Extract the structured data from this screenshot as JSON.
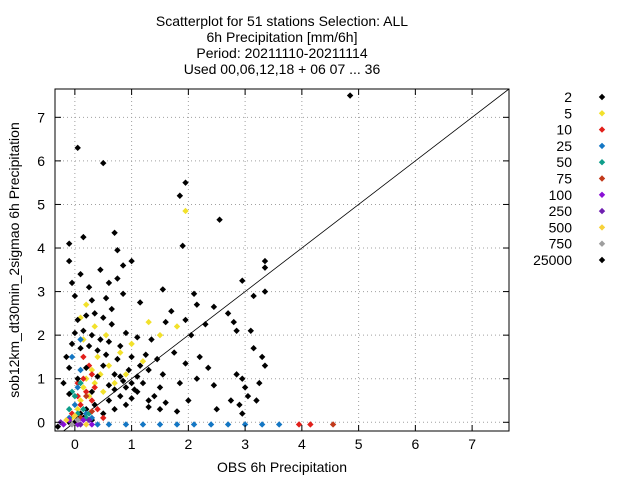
{
  "chart_data": {
    "type": "scatter",
    "title_lines": [
      "Scatterplot for   51 stations Selection: ALL",
      "6h Precipitation [mm/6h]",
      "Period: 20211110-20211114",
      "Used 00,06,12,18 + 06 07 ... 36"
    ],
    "xlabel": "OBS 6h Precipitation",
    "ylabel": "sob12km_dt30min_2sigmao 6h Precipitation",
    "xlim": [
      -0.35,
      7.65
    ],
    "ylim": [
      -0.2,
      7.65
    ],
    "xticks": [
      0,
      1,
      2,
      3,
      4,
      5,
      6,
      7
    ],
    "yticks": [
      0,
      1,
      2,
      3,
      4,
      5,
      6,
      7
    ],
    "diagonal": true,
    "legend_placement": "right",
    "series": [
      {
        "name": "2",
        "color": "#000000",
        "points": [
          [
            -0.3,
            -0.1
          ],
          [
            -0.1,
            0
          ],
          [
            0,
            0
          ],
          [
            0.05,
            0.1
          ],
          [
            0.1,
            0.2
          ],
          [
            0.15,
            0.1
          ],
          [
            0.2,
            0.3
          ],
          [
            0.3,
            0.05
          ],
          [
            0.35,
            0.4
          ],
          [
            0.5,
            0.2
          ],
          [
            0.6,
            0.5
          ],
          [
            0.7,
            0.3
          ],
          [
            0.8,
            0.6
          ],
          [
            0.9,
            0.4
          ],
          [
            1.0,
            0.9
          ],
          [
            1.1,
            0.7
          ],
          [
            1.3,
            0.5
          ],
          [
            1.5,
            0.3
          ]
        ]
      },
      {
        "name": "5",
        "color": "#f2e12b",
        "points": [
          [
            -0.05,
            0.1
          ],
          [
            0.05,
            0.3
          ],
          [
            0.1,
            0.5
          ],
          [
            0.15,
            0.8
          ],
          [
            0.2,
            1.0
          ],
          [
            0.25,
            0.6
          ],
          [
            0.3,
            1.2
          ],
          [
            0.35,
            0.9
          ],
          [
            0.4,
            1.5
          ],
          [
            0.45,
            1.1
          ],
          [
            0.5,
            0.7
          ],
          [
            0.6,
            1.3
          ],
          [
            0.7,
            0.9
          ],
          [
            0.8,
            1.6
          ],
          [
            0.9,
            1.1
          ],
          [
            1.0,
            1.8
          ],
          [
            1.2,
            1.4
          ],
          [
            1.5,
            2.0
          ],
          [
            1.8,
            2.2
          ],
          [
            0.1,
            2.4
          ],
          [
            0.2,
            2.7
          ],
          [
            0.35,
            2.2
          ],
          [
            1.3,
            2.3
          ],
          [
            1.95,
            4.85
          ],
          [
            0.15,
            1.9
          ],
          [
            0.55,
            2.0
          ]
        ]
      },
      {
        "name": "10",
        "color": "#e2201b",
        "points": [
          [
            -0.05,
            0.2
          ],
          [
            0.05,
            0.6
          ],
          [
            0.1,
            0.4
          ],
          [
            0.15,
            1.0
          ],
          [
            0.2,
            0.7
          ],
          [
            0.25,
            1.3
          ],
          [
            0.3,
            0.5
          ],
          [
            0.35,
            0.8
          ],
          [
            0.4,
            0.3
          ],
          [
            0.05,
            0.9
          ],
          [
            0.15,
            1.5
          ],
          [
            0.3,
            1.1
          ],
          [
            0.5,
            0.1
          ],
          [
            3.95,
            -0.05
          ],
          [
            4.15,
            -0.05
          ]
        ]
      },
      {
        "name": "25",
        "color": "#1477c4",
        "points": [
          [
            -0.1,
            0.1
          ],
          [
            0,
            0.4
          ],
          [
            0.05,
            0.8
          ],
          [
            0.1,
            1.2
          ],
          [
            -0.05,
            1.5
          ],
          [
            0.1,
            1.9
          ],
          [
            0.2,
            0.2
          ],
          [
            0.3,
            0.1
          ],
          [
            0.4,
            -0.05
          ],
          [
            0.6,
            -0.05
          ],
          [
            0.9,
            -0.05
          ],
          [
            1.2,
            -0.05
          ],
          [
            1.5,
            -0.05
          ],
          [
            1.8,
            -0.05
          ],
          [
            2.1,
            -0.05
          ],
          [
            2.4,
            -0.05
          ],
          [
            2.7,
            -0.05
          ],
          [
            3.0,
            -0.05
          ],
          [
            3.3,
            -0.05
          ],
          [
            3.6,
            -0.05
          ]
        ]
      },
      {
        "name": "50",
        "color": "#0e9e8a",
        "points": [
          [
            -0.1,
            0.3
          ],
          [
            0,
            0.6
          ],
          [
            0.05,
            0.2
          ],
          [
            0.1,
            0.9
          ],
          [
            0.15,
            0.3
          ],
          [
            0.2,
            0.1
          ],
          [
            -0.05,
            0.7
          ],
          [
            0.25,
            0.2
          ]
        ]
      },
      {
        "name": "75",
        "color": "#c23a1b",
        "points": [
          [
            0.1,
            0.1
          ],
          [
            0.2,
            0.6
          ],
          [
            0.3,
            0.25
          ],
          [
            4.55,
            -0.05
          ]
        ]
      },
      {
        "name": "100",
        "color": "#8a0fd6",
        "points": [
          [
            -0.2,
            -0.05
          ],
          [
            -0.1,
            0.05
          ],
          [
            0.05,
            -0.05
          ],
          [
            0.15,
            0.05
          ],
          [
            0.3,
            -0.05
          ]
        ]
      },
      {
        "name": "250",
        "color": "#6f1fb0",
        "points": [
          [
            -0.25,
            0.0
          ],
          [
            0.1,
            -0.05
          ],
          [
            0.25,
            0.05
          ]
        ]
      },
      {
        "name": "500",
        "color": "#f7d23a",
        "points": [
          [
            -0.15,
            0.05
          ],
          [
            0.0,
            0.15
          ],
          [
            0.2,
            -0.05
          ]
        ]
      },
      {
        "name": "750",
        "color": "#9e9e9e",
        "points": [
          [
            -0.05,
            -0.05
          ],
          [
            0.05,
            0.05
          ]
        ]
      },
      {
        "name": "25000",
        "color": "#000000",
        "points": [
          [
            0.05,
            6.3
          ],
          [
            0.5,
            5.95
          ],
          [
            4.85,
            7.5
          ],
          [
            1.95,
            5.5
          ],
          [
            1.85,
            5.2
          ],
          [
            2.55,
            4.65
          ],
          [
            1.9,
            4.05
          ],
          [
            3.35,
            3.7
          ],
          [
            3.35,
            3.55
          ],
          [
            0.15,
            4.25
          ],
          [
            0.7,
            4.35
          ],
          [
            0.75,
            3.95
          ],
          [
            -0.1,
            4.1
          ],
          [
            -0.1,
            3.7
          ],
          [
            1.0,
            3.7
          ],
          [
            0.75,
            3.3
          ],
          [
            0.85,
            2.95
          ],
          [
            1.55,
            3.05
          ],
          [
            2.1,
            2.95
          ],
          [
            2.15,
            2.7
          ],
          [
            2.45,
            2.65
          ],
          [
            2.95,
            3.25
          ],
          [
            3.15,
            2.9
          ],
          [
            3.35,
            3.0
          ],
          [
            0.0,
            2.9
          ],
          [
            0.3,
            2.8
          ],
          [
            0.55,
            2.85
          ],
          [
            0.65,
            2.6
          ],
          [
            1.15,
            2.75
          ],
          [
            1.7,
            2.55
          ],
          [
            1.95,
            2.35
          ],
          [
            2.05,
            2.0
          ],
          [
            2.3,
            2.25
          ],
          [
            2.7,
            2.5
          ],
          [
            2.8,
            2.3
          ],
          [
            2.85,
            2.1
          ],
          [
            3.1,
            2.1
          ],
          [
            3.15,
            1.7
          ],
          [
            3.3,
            1.5
          ],
          [
            3.35,
            1.3
          ],
          [
            2.95,
            1.0
          ],
          [
            3.0,
            0.8
          ],
          [
            2.85,
            1.1
          ],
          [
            3.05,
            0.6
          ],
          [
            2.9,
            0.4
          ],
          [
            2.95,
            0.2
          ],
          [
            3.25,
            0.9
          ],
          [
            2.75,
            0.5
          ],
          [
            2.2,
            1.5
          ],
          [
            2.35,
            1.25
          ],
          [
            2.45,
            0.85
          ],
          [
            2.15,
            1.0
          ],
          [
            1.95,
            1.35
          ],
          [
            1.85,
            0.9
          ],
          [
            1.75,
            1.6
          ],
          [
            1.6,
            2.3
          ],
          [
            1.55,
            1.1
          ],
          [
            1.45,
            1.45
          ],
          [
            1.4,
            0.6
          ],
          [
            1.35,
            1.9
          ],
          [
            1.25,
            1.55
          ],
          [
            1.2,
            0.9
          ],
          [
            1.15,
            1.3
          ],
          [
            1.1,
            1.95
          ],
          [
            1.05,
            0.75
          ],
          [
            1.0,
            1.5
          ],
          [
            0.95,
            1.2
          ],
          [
            0.9,
            2.05
          ],
          [
            0.85,
            0.95
          ],
          [
            0.8,
            1.75
          ],
          [
            0.75,
            1.45
          ],
          [
            0.7,
            0.75
          ],
          [
            0.65,
            2.25
          ],
          [
            0.6,
            1.85
          ],
          [
            0.55,
            1.55
          ],
          [
            0.5,
            2.4
          ],
          [
            0.45,
            1.9
          ],
          [
            0.4,
            1.65
          ],
          [
            0.35,
            2.5
          ],
          [
            0.3,
            2.0
          ],
          [
            0.25,
            1.75
          ],
          [
            0.2,
            2.45
          ],
          [
            0.15,
            2.1
          ],
          [
            0.1,
            1.7
          ],
          [
            0.05,
            2.35
          ],
          [
            0.0,
            2.05
          ],
          [
            -0.05,
            1.8
          ],
          [
            -0.15,
            1.5
          ],
          [
            -0.1,
            1.25
          ],
          [
            -0.2,
            0.9
          ],
          [
            -0.1,
            0.65
          ],
          [
            0.2,
            1.25
          ],
          [
            0.4,
            1.05
          ],
          [
            0.6,
            0.85
          ],
          [
            0.8,
            1.05
          ],
          [
            1.0,
            0.55
          ],
          [
            1.3,
            0.35
          ],
          [
            1.6,
            0.45
          ],
          [
            1.8,
            0.25
          ],
          [
            2.0,
            0.5
          ],
          [
            2.5,
            0.3
          ],
          [
            3.2,
            0.5
          ],
          [
            0.05,
            1.0
          ],
          [
            0.3,
            0.7
          ],
          [
            0.5,
            1.3
          ],
          [
            0.7,
            1.1
          ],
          [
            0.9,
            0.8
          ],
          [
            1.1,
            1.05
          ],
          [
            1.3,
            1.2
          ],
          [
            1.5,
            0.8
          ],
          [
            0.25,
            3.1
          ],
          [
            0.1,
            3.4
          ],
          [
            -0.05,
            3.2
          ],
          [
            0.6,
            3.2
          ],
          [
            0.85,
            3.6
          ],
          [
            0.45,
            3.5
          ]
        ]
      }
    ]
  }
}
